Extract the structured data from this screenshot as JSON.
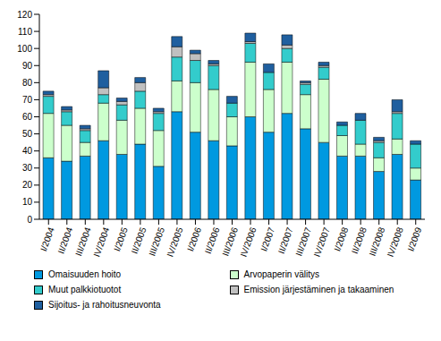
{
  "chart_data": {
    "type": "bar",
    "stacked": true,
    "grid": false,
    "legend": "bottom",
    "categories": [
      "I/2004",
      "II/2004",
      "III/2004",
      "IV/2004",
      "I/2005",
      "II/2005",
      "III/2005",
      "IV/2005",
      "I/2006",
      "II/2006",
      "III/2006",
      "IV/2006",
      "I/2007",
      "II/2007",
      "III/2007",
      "IV/2007",
      "I/2008",
      "II/2008",
      "III/2008",
      "IV/2008",
      "I/2009"
    ],
    "ylim": [
      0,
      120
    ],
    "yticks": [
      0,
      10,
      20,
      30,
      40,
      50,
      60,
      70,
      80,
      90,
      100,
      110,
      120
    ],
    "series": [
      {
        "name": "Omaisuuden hoito",
        "color": "#0099e0",
        "values": [
          36,
          34,
          37,
          46,
          38,
          44,
          31,
          63,
          51,
          46,
          43,
          60,
          51,
          62,
          53,
          45,
          37,
          37,
          28,
          38,
          23
        ]
      },
      {
        "name": "Arvopaperin välitys",
        "color": "#ccffcc",
        "values": [
          26,
          21,
          8,
          22,
          20,
          21,
          21,
          18,
          29,
          30,
          17,
          32,
          25,
          30,
          20,
          37,
          12,
          7,
          8,
          9,
          7
        ]
      },
      {
        "name": "Muut palkkiotuotot",
        "color": "#33cccc",
        "values": [
          10,
          8,
          7,
          5,
          9,
          10,
          10,
          14,
          13,
          14,
          8,
          11,
          10,
          8,
          6,
          7,
          6,
          14,
          9,
          15,
          14
        ]
      },
      {
        "name": "Emission järjestäminen ja takaaminen",
        "color": "#c0c0c0",
        "values": [
          1,
          1,
          1,
          4,
          2,
          5,
          1,
          6,
          4,
          1,
          0,
          1,
          0,
          2,
          1,
          1,
          0,
          0,
          1,
          1,
          0
        ]
      },
      {
        "name": "Sijoitus- ja rahoitusneuvonta",
        "color": "#1f5f9f",
        "values": [
          2,
          2,
          2,
          10,
          2,
          3,
          2,
          6,
          2,
          2,
          4,
          5,
          5,
          6,
          1,
          2,
          2,
          4,
          2,
          7,
          2
        ]
      }
    ]
  }
}
